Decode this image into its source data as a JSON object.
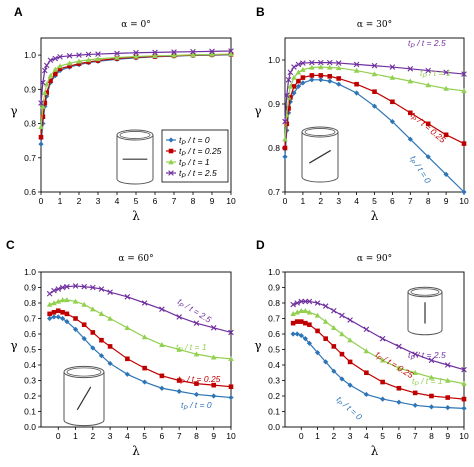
{
  "series_colors": {
    "tp0": "#2e75b6",
    "tp025": "#c00000",
    "tp1": "#92d050",
    "tp25": "#7030a0"
  },
  "series_markers": {
    "tp0": "diamond",
    "tp025": "square",
    "tp1": "triangle",
    "tp25": "x"
  },
  "icon": "cylinder-with-fiber-icon",
  "chart_data": [
    {
      "type": "line",
      "panel_letter": "A",
      "title": "α = 0°",
      "xlabel": "λ",
      "ylabel": "γ",
      "xlim": [
        0,
        10
      ],
      "ylim": [
        0.6,
        1.05
      ],
      "xticks": [
        "0",
        "1",
        "2",
        "3",
        "4",
        "5",
        "6",
        "7",
        "8",
        "9",
        "10"
      ],
      "yticks": [
        "0.6",
        "0.7",
        "0.8",
        "0.9",
        "1.0"
      ],
      "legend": {
        "placement": "lower-right",
        "entries": [
          "tP / t = 0",
          "tP / t = 0.25",
          "tP / t = 1",
          "tP / t = 2.5"
        ]
      },
      "series": [
        {
          "key": "tp0",
          "name": "tP / t = 0",
          "x": [
            0,
            0.1,
            0.2,
            0.3,
            0.5,
            0.75,
            1,
            1.5,
            2,
            2.5,
            3,
            4,
            5,
            6,
            7,
            8,
            9,
            10
          ],
          "y": [
            0.74,
            0.8,
            0.85,
            0.88,
            0.92,
            0.94,
            0.955,
            0.965,
            0.972,
            0.978,
            0.982,
            0.988,
            0.992,
            0.995,
            0.997,
            0.999,
            1.0,
            1.001
          ]
        },
        {
          "key": "tp025",
          "name": "tP / t = 0.25",
          "x": [
            0,
            0.1,
            0.2,
            0.3,
            0.5,
            0.75,
            1,
            1.5,
            2,
            2.5,
            3,
            4,
            5,
            6,
            7,
            8,
            9,
            10
          ],
          "y": [
            0.76,
            0.82,
            0.86,
            0.89,
            0.925,
            0.945,
            0.96,
            0.968,
            0.975,
            0.98,
            0.984,
            0.99,
            0.994,
            0.996,
            0.998,
            1.0,
            1.001,
            1.002
          ]
        },
        {
          "key": "tp1",
          "name": "tP / t = 1",
          "x": [
            0,
            0.1,
            0.2,
            0.3,
            0.5,
            0.75,
            1,
            1.5,
            2,
            2.5,
            3,
            4,
            5,
            6,
            7,
            8,
            9,
            10
          ],
          "y": [
            0.79,
            0.85,
            0.89,
            0.915,
            0.94,
            0.958,
            0.968,
            0.976,
            0.982,
            0.986,
            0.989,
            0.993,
            0.996,
            0.998,
            0.999,
            1.001,
            1.002,
            1.003
          ]
        },
        {
          "key": "tp25",
          "name": "tP / t = 2.5",
          "x": [
            0,
            0.1,
            0.2,
            0.3,
            0.5,
            0.75,
            1,
            1.5,
            2,
            2.5,
            3,
            4,
            5,
            6,
            7,
            8,
            9,
            10
          ],
          "y": [
            0.86,
            0.92,
            0.955,
            0.97,
            0.985,
            0.99,
            0.995,
            0.998,
            1.0,
            1.002,
            1.003,
            1.005,
            1.007,
            1.008,
            1.009,
            1.01,
            1.011,
            1.012
          ]
        }
      ]
    },
    {
      "type": "line",
      "panel_letter": "B",
      "title": "α = 30°",
      "xlabel": "λ",
      "ylabel": "γ",
      "xlim": [
        0,
        10
      ],
      "ylim": [
        0.7,
        1.05
      ],
      "xticks": [
        "0",
        "1",
        "2",
        "3",
        "4",
        "5",
        "6",
        "7",
        "8",
        "9",
        "10"
      ],
      "yticks": [
        "0.7",
        "0.8",
        "0.9",
        "1.0"
      ],
      "curve_labels": [
        "tP / t = 2.5",
        "tP / t = 1",
        "tP / t = 0.25",
        "tP / t = 0"
      ],
      "series": [
        {
          "key": "tp0",
          "name": "tP / t = 0",
          "x": [
            0,
            0.1,
            0.2,
            0.3,
            0.5,
            0.75,
            1,
            1.5,
            2,
            2.5,
            3,
            4,
            5,
            6,
            7,
            8,
            9,
            10
          ],
          "y": [
            0.78,
            0.84,
            0.88,
            0.905,
            0.925,
            0.94,
            0.948,
            0.955,
            0.955,
            0.952,
            0.945,
            0.925,
            0.895,
            0.86,
            0.82,
            0.78,
            0.74,
            0.7
          ]
        },
        {
          "key": "tp025",
          "name": "tP / t = 0.25",
          "x": [
            0,
            0.1,
            0.2,
            0.3,
            0.5,
            0.75,
            1,
            1.5,
            2,
            2.5,
            3,
            4,
            5,
            6,
            7,
            8,
            9,
            10
          ],
          "y": [
            0.8,
            0.855,
            0.89,
            0.915,
            0.94,
            0.952,
            0.96,
            0.965,
            0.965,
            0.963,
            0.958,
            0.945,
            0.928,
            0.905,
            0.88,
            0.855,
            0.83,
            0.81
          ]
        },
        {
          "key": "tp1",
          "name": "tP / t = 1",
          "x": [
            0,
            0.1,
            0.2,
            0.3,
            0.5,
            0.75,
            1,
            1.5,
            2,
            2.5,
            3,
            4,
            5,
            6,
            7,
            8,
            9,
            10
          ],
          "y": [
            0.82,
            0.875,
            0.915,
            0.94,
            0.96,
            0.972,
            0.978,
            0.983,
            0.984,
            0.983,
            0.982,
            0.976,
            0.968,
            0.96,
            0.952,
            0.943,
            0.935,
            0.93
          ]
        },
        {
          "key": "tp25",
          "name": "tP / t = 2.5",
          "x": [
            0,
            0.1,
            0.2,
            0.3,
            0.5,
            0.75,
            1,
            1.5,
            2,
            2.5,
            3,
            4,
            5,
            6,
            7,
            8,
            9,
            10
          ],
          "y": [
            0.86,
            0.92,
            0.955,
            0.972,
            0.984,
            0.99,
            0.993,
            0.994,
            0.994,
            0.994,
            0.993,
            0.99,
            0.987,
            0.984,
            0.98,
            0.976,
            0.972,
            0.968
          ]
        }
      ]
    },
    {
      "type": "line",
      "panel_letter": "C",
      "title": "α = 60°",
      "xlabel": "λ",
      "ylabel": "γ",
      "xlim": [
        -1,
        10
      ],
      "ylim": [
        0,
        1.0
      ],
      "xticks": [
        "0",
        "1",
        "2",
        "3",
        "4",
        "5",
        "6",
        "7",
        "8",
        "9",
        "10"
      ],
      "yticks": [
        "0.0",
        "0.1",
        "0.2",
        "0.3",
        "0.4",
        "0.5",
        "0.6",
        "0.7",
        "0.8",
        "0.9",
        "1.0"
      ],
      "curve_labels": [
        "tP / t = 2.5",
        "tP / t = 1",
        "tP / t = 0.25",
        "tP / t = 0"
      ],
      "series": [
        {
          "key": "tp0",
          "name": "tP / t = 0",
          "x": [
            -0.5,
            -0.25,
            0,
            0.25,
            0.5,
            1,
            1.5,
            2,
            2.5,
            3,
            4,
            5,
            6,
            7,
            8,
            9,
            10
          ],
          "y": [
            0.7,
            0.71,
            0.71,
            0.7,
            0.68,
            0.63,
            0.57,
            0.51,
            0.46,
            0.41,
            0.34,
            0.29,
            0.25,
            0.23,
            0.21,
            0.2,
            0.19
          ]
        },
        {
          "key": "tp025",
          "name": "tP / t = 0.25",
          "x": [
            -0.5,
            -0.25,
            0,
            0.25,
            0.5,
            1,
            1.5,
            2,
            2.5,
            3,
            4,
            5,
            6,
            7,
            8,
            9,
            10
          ],
          "y": [
            0.73,
            0.74,
            0.75,
            0.74,
            0.73,
            0.7,
            0.66,
            0.61,
            0.56,
            0.52,
            0.44,
            0.38,
            0.33,
            0.3,
            0.28,
            0.27,
            0.26
          ]
        },
        {
          "key": "tp1",
          "name": "tP / t = 1",
          "x": [
            -0.5,
            -0.25,
            0,
            0.25,
            0.5,
            1,
            1.5,
            2,
            2.5,
            3,
            4,
            5,
            6,
            7,
            8,
            9,
            10
          ],
          "y": [
            0.79,
            0.8,
            0.81,
            0.82,
            0.82,
            0.81,
            0.79,
            0.76,
            0.73,
            0.7,
            0.64,
            0.58,
            0.53,
            0.5,
            0.47,
            0.45,
            0.44
          ]
        },
        {
          "key": "tp25",
          "name": "tP / t = 2.5",
          "x": [
            -0.5,
            -0.25,
            0,
            0.25,
            0.5,
            1,
            1.5,
            2,
            2.5,
            3,
            4,
            5,
            6,
            7,
            8,
            9,
            10
          ],
          "y": [
            0.86,
            0.88,
            0.89,
            0.9,
            0.905,
            0.91,
            0.905,
            0.9,
            0.89,
            0.87,
            0.84,
            0.8,
            0.76,
            0.71,
            0.67,
            0.64,
            0.61
          ]
        }
      ]
    },
    {
      "type": "line",
      "panel_letter": "D",
      "title": "α = 90°",
      "xlabel": "λ",
      "ylabel": "γ",
      "xlim": [
        -1,
        10
      ],
      "ylim": [
        0,
        1.0
      ],
      "xticks": [
        "0",
        "1",
        "2",
        "3",
        "4",
        "5",
        "6",
        "7",
        "8",
        "9",
        "10"
      ],
      "yticks": [
        "0.0",
        "0.1",
        "0.2",
        "0.3",
        "0.4",
        "0.5",
        "0.6",
        "0.7",
        "0.8",
        "0.9",
        "1.0"
      ],
      "curve_labels": [
        "tP / t = 2.5",
        "tP / t = 1",
        "tP / t = 0.25",
        "tP / t = 0"
      ],
      "series": [
        {
          "key": "tp0",
          "name": "tP / t = 0",
          "x": [
            -0.5,
            -0.25,
            0,
            0.25,
            0.5,
            1,
            1.5,
            2,
            2.5,
            3,
            4,
            5,
            6,
            7,
            8,
            9,
            10
          ],
          "y": [
            0.6,
            0.6,
            0.59,
            0.57,
            0.54,
            0.48,
            0.42,
            0.36,
            0.31,
            0.27,
            0.21,
            0.18,
            0.16,
            0.14,
            0.13,
            0.125,
            0.12
          ]
        },
        {
          "key": "tp025",
          "name": "tP / t = 0.25",
          "x": [
            -0.5,
            -0.25,
            0,
            0.25,
            0.5,
            1,
            1.5,
            2,
            2.5,
            3,
            4,
            5,
            6,
            7,
            8,
            9,
            10
          ],
          "y": [
            0.67,
            0.68,
            0.68,
            0.67,
            0.66,
            0.62,
            0.57,
            0.52,
            0.47,
            0.42,
            0.35,
            0.29,
            0.25,
            0.22,
            0.2,
            0.19,
            0.18
          ]
        },
        {
          "key": "tp1",
          "name": "tP / t = 1",
          "x": [
            -0.5,
            -0.25,
            0,
            0.25,
            0.5,
            1,
            1.5,
            2,
            2.5,
            3,
            4,
            5,
            6,
            7,
            8,
            9,
            10
          ],
          "y": [
            0.73,
            0.74,
            0.75,
            0.75,
            0.74,
            0.72,
            0.68,
            0.64,
            0.6,
            0.56,
            0.49,
            0.43,
            0.38,
            0.35,
            0.32,
            0.3,
            0.28
          ]
        },
        {
          "key": "tp25",
          "name": "tP / t = 2.5",
          "x": [
            -0.5,
            -0.25,
            0,
            0.25,
            0.5,
            1,
            1.5,
            2,
            2.5,
            3,
            4,
            5,
            6,
            7,
            8,
            9,
            10
          ],
          "y": [
            0.79,
            0.8,
            0.81,
            0.81,
            0.81,
            0.8,
            0.78,
            0.75,
            0.72,
            0.69,
            0.63,
            0.57,
            0.52,
            0.47,
            0.43,
            0.4,
            0.37
          ]
        }
      ]
    }
  ]
}
